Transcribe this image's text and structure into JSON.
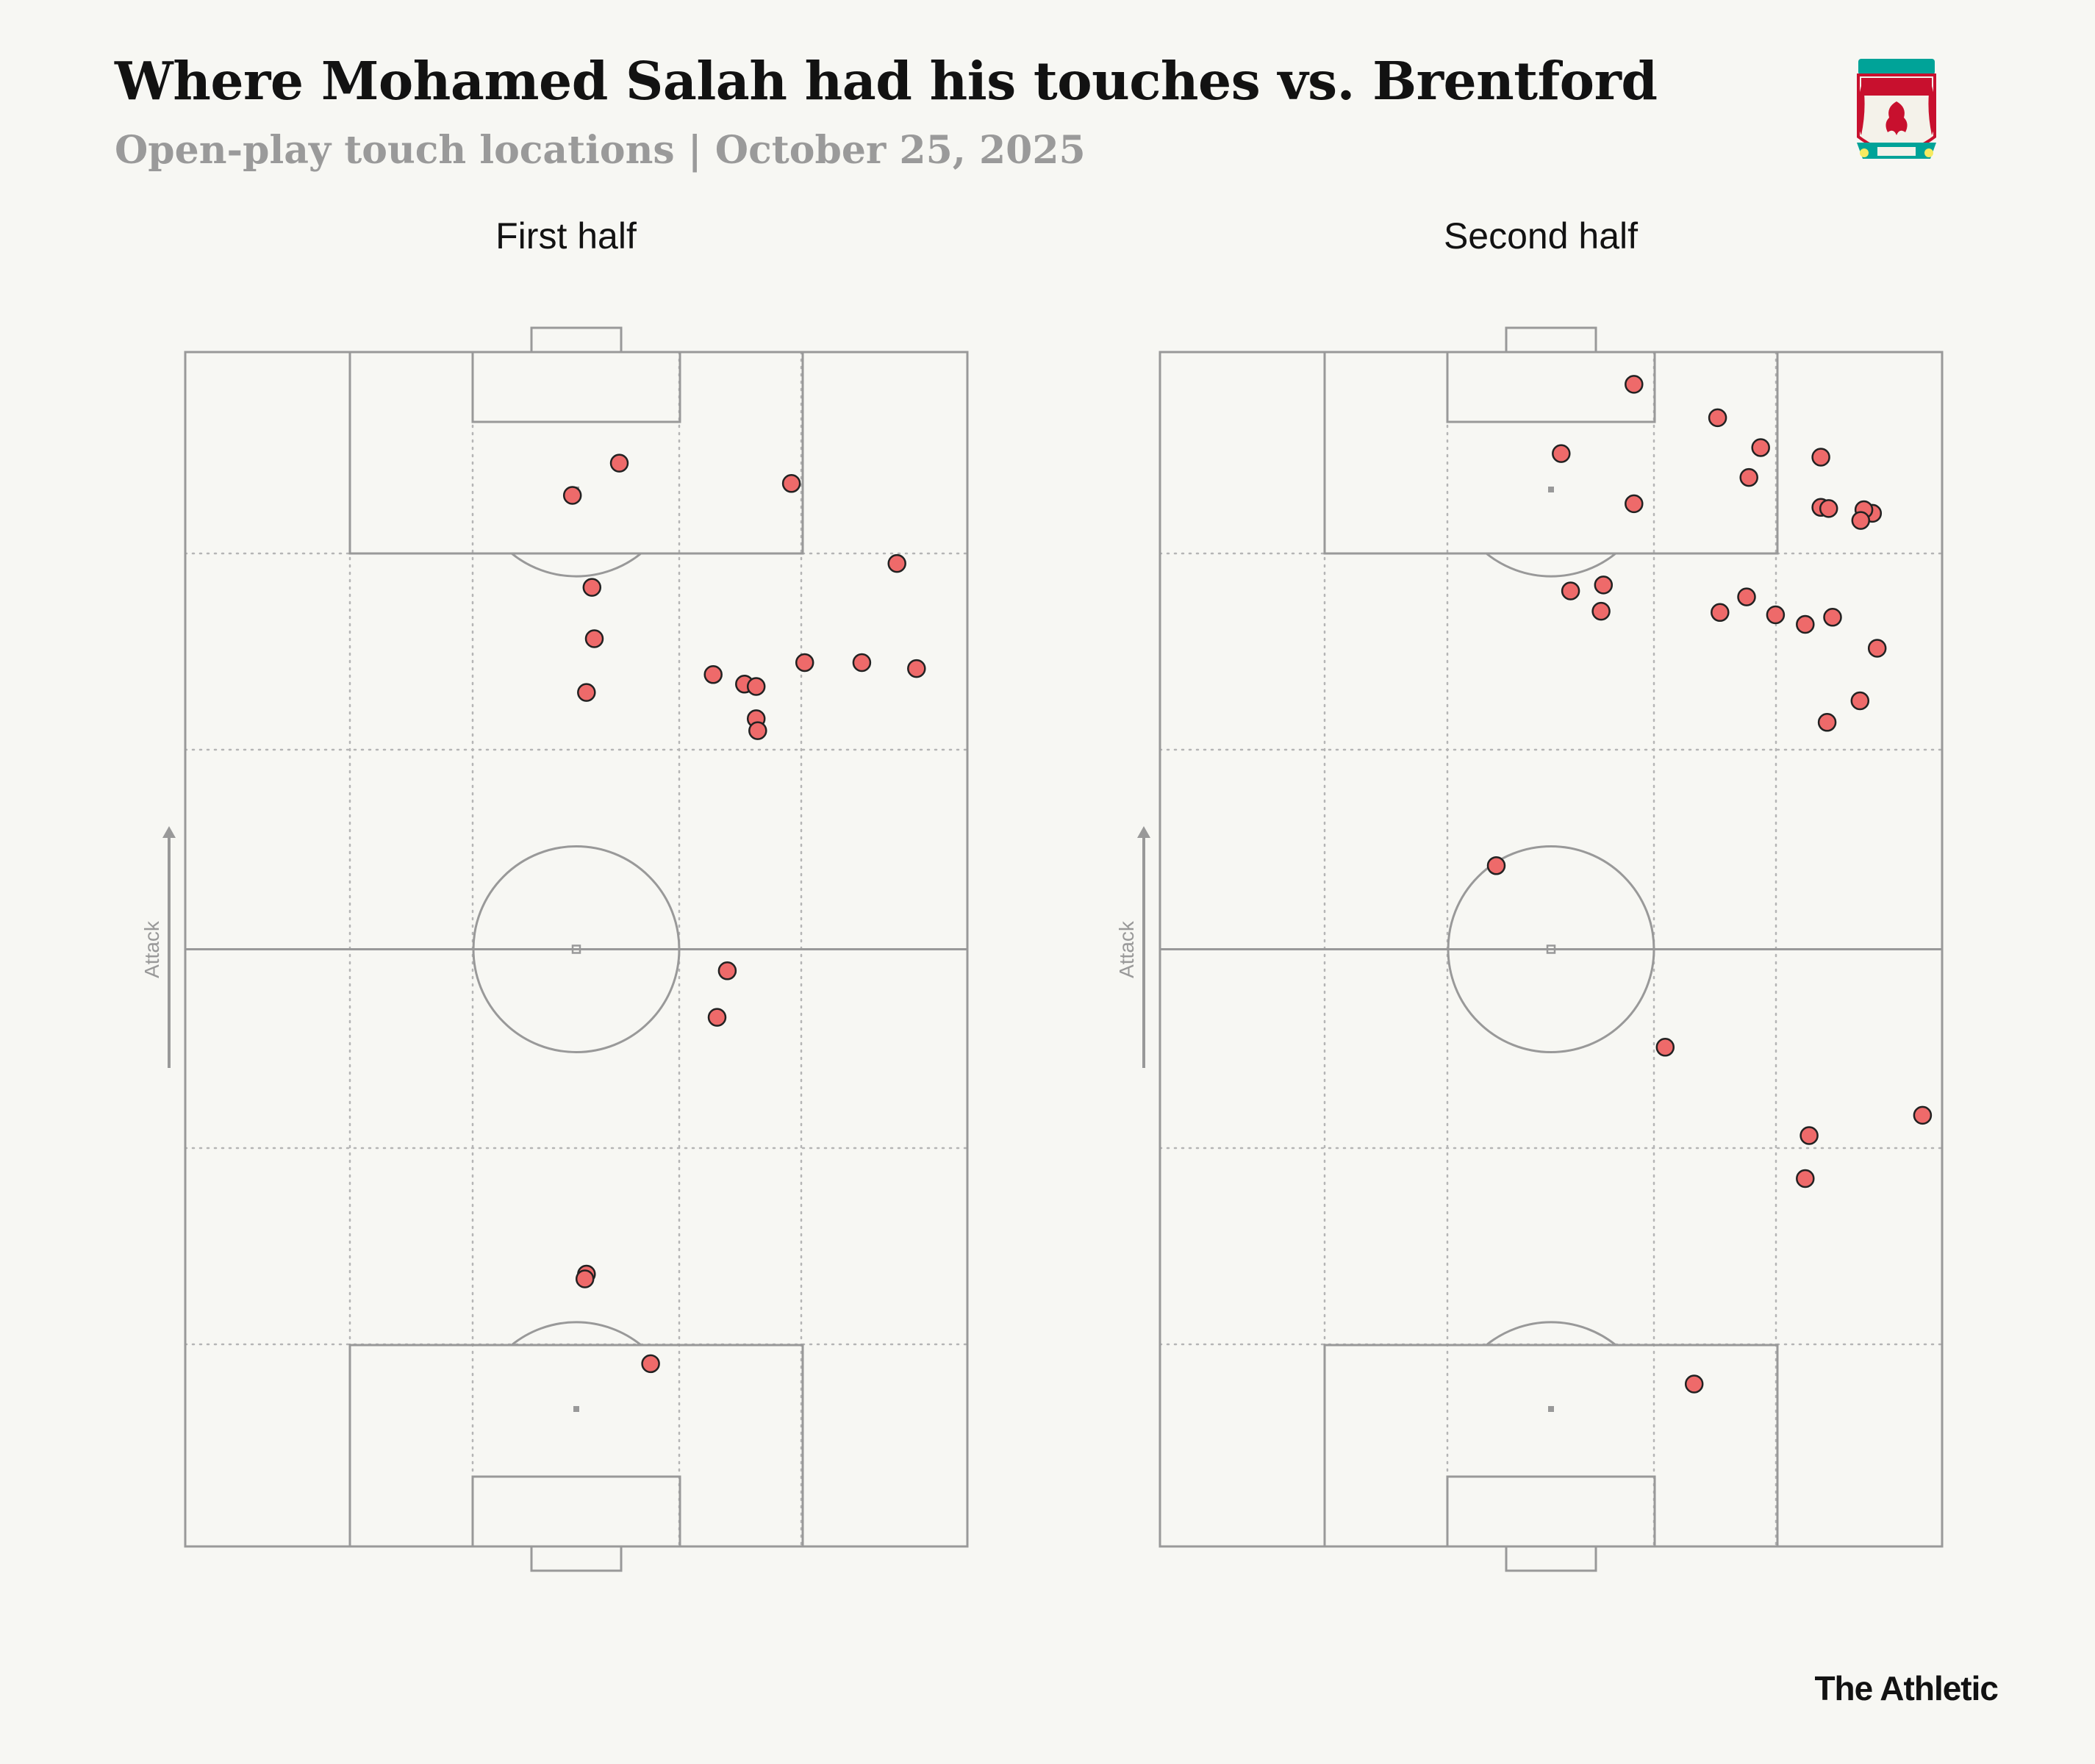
{
  "header": {
    "title": "Where Mohamed Salah had his touches vs. Brentford",
    "subtitle": "Open-play touch locations | October 25, 2025"
  },
  "brand": "The Athletic",
  "crest": {
    "icon": "liverpool-crest-icon",
    "colors": {
      "red": "#c8102e",
      "green": "#00a398",
      "gold": "#f6eb61"
    }
  },
  "colors": {
    "background": "#f7f7f3",
    "pitch_line": "#999999",
    "touch_fill": "#ee6a6a",
    "touch_stroke": "#222222"
  },
  "direction_label": "Attack",
  "chart_data": {
    "type": "scatter",
    "description_units": "x = 0 (left touchline) to 100 (right touchline); y = 0 (own goal line) to 100 (opponent goal line); attacking upward",
    "xlim": [
      0,
      100
    ],
    "ylim": [
      0,
      100
    ],
    "panels": [
      {
        "title": "First half",
        "points": [
          {
            "x": 49.5,
            "y": 88.0
          },
          {
            "x": 55.5,
            "y": 90.7
          },
          {
            "x": 77.5,
            "y": 89.0
          },
          {
            "x": 52.0,
            "y": 80.3
          },
          {
            "x": 52.3,
            "y": 76.0
          },
          {
            "x": 51.3,
            "y": 71.5
          },
          {
            "x": 67.5,
            "y": 73.0
          },
          {
            "x": 71.5,
            "y": 72.2
          },
          {
            "x": 73.0,
            "y": 72.0
          },
          {
            "x": 73.0,
            "y": 69.3
          },
          {
            "x": 79.2,
            "y": 74.0
          },
          {
            "x": 86.5,
            "y": 74.0
          },
          {
            "x": 91.0,
            "y": 82.3
          },
          {
            "x": 93.5,
            "y": 73.5
          },
          {
            "x": 73.2,
            "y": 68.3
          },
          {
            "x": 69.3,
            "y": 48.2
          },
          {
            "x": 68.0,
            "y": 44.3
          },
          {
            "x": 51.3,
            "y": 22.8
          },
          {
            "x": 51.1,
            "y": 22.4
          },
          {
            "x": 59.5,
            "y": 15.3
          }
        ]
      },
      {
        "title": "Second half",
        "points": [
          {
            "x": 60.6,
            "y": 97.3
          },
          {
            "x": 71.3,
            "y": 94.5
          },
          {
            "x": 51.3,
            "y": 91.5
          },
          {
            "x": 76.8,
            "y": 92.0
          },
          {
            "x": 84.5,
            "y": 91.2
          },
          {
            "x": 75.3,
            "y": 89.5
          },
          {
            "x": 60.6,
            "y": 87.3
          },
          {
            "x": 84.5,
            "y": 87.0
          },
          {
            "x": 85.5,
            "y": 86.9
          },
          {
            "x": 91.1,
            "y": 86.5
          },
          {
            "x": 90.0,
            "y": 86.8
          },
          {
            "x": 89.6,
            "y": 85.9
          },
          {
            "x": 52.5,
            "y": 80.0
          },
          {
            "x": 56.7,
            "y": 80.5
          },
          {
            "x": 56.4,
            "y": 78.3
          },
          {
            "x": 75.0,
            "y": 79.5
          },
          {
            "x": 71.6,
            "y": 78.2
          },
          {
            "x": 78.7,
            "y": 78.0
          },
          {
            "x": 82.5,
            "y": 77.2
          },
          {
            "x": 86.0,
            "y": 77.8
          },
          {
            "x": 91.7,
            "y": 75.2
          },
          {
            "x": 89.5,
            "y": 70.8
          },
          {
            "x": 85.3,
            "y": 69.0
          },
          {
            "x": 43.0,
            "y": 57.0
          },
          {
            "x": 64.6,
            "y": 41.8
          },
          {
            "x": 97.5,
            "y": 36.1
          },
          {
            "x": 83.0,
            "y": 34.4
          },
          {
            "x": 82.5,
            "y": 30.8
          },
          {
            "x": 68.3,
            "y": 13.6
          }
        ]
      }
    ]
  }
}
